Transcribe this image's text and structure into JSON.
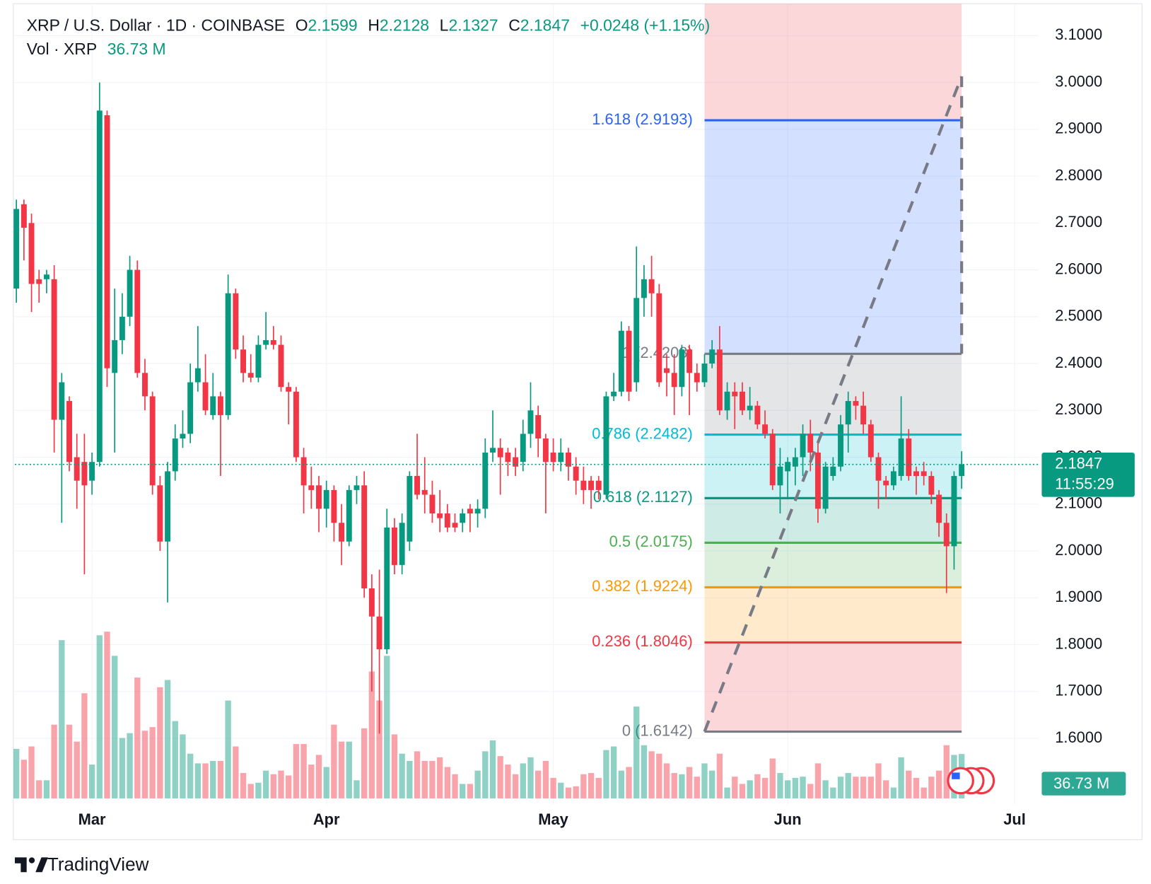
{
  "chart_data": {
    "type": "candlestick",
    "title": "XRP / U.S. Dollar · 1D · COINBASE",
    "ohlc_labels": {
      "open": "O",
      "high": "H",
      "low": "L",
      "close": "C"
    },
    "change_label": "+0.0248 (+1.15%)",
    "volume_title": "Vol · XRP",
    "volume_label": "36.73 M",
    "countdown": "11:55:29",
    "up_color": "#089981",
    "down_color": "#f23645",
    "open": [
      2.56,
      2.74,
      2.7,
      2.58,
      2.58,
      2.58,
      2.28,
      2.32,
      2.2,
      2.19,
      2.15,
      2.19,
      2.93,
      2.38,
      2.45,
      2.5,
      2.6,
      2.38,
      2.33,
      2.14,
      2.02,
      2.17,
      2.24,
      2.25,
      2.36,
      2.36,
      2.29,
      2.33,
      2.29,
      2.55,
      2.43,
      2.38,
      2.37,
      2.44,
      2.45,
      2.44,
      2.35,
      2.34,
      2.2,
      2.14,
      2.14,
      2.09,
      2.13,
      2.06,
      2.02,
      2.13,
      2.14,
      1.92,
      1.86,
      1.79,
      2.05,
      1.97,
      2.02,
      2.16,
      2.13,
      2.12,
      2.08,
      2.08,
      2.06,
      2.06,
      2.09,
      2.08,
      2.09,
      2.21,
      2.22,
      2.21,
      2.2,
      2.19,
      2.25,
      2.29,
      2.24,
      2.21,
      2.19,
      2.21,
      2.18,
      2.15,
      2.15,
      2.15,
      2.12,
      2.33,
      2.34,
      2.47,
      2.36,
      2.54,
      2.58,
      2.55,
      2.39,
      2.38,
      2.35,
      2.43,
      2.38,
      2.36,
      2.4,
      2.43,
      2.3,
      2.34,
      2.34,
      2.3,
      2.31,
      2.27,
      2.25,
      2.14,
      2.17,
      2.18,
      2.2,
      2.25,
      2.21,
      2.09,
      2.16,
      2.18,
      2.27,
      2.32,
      2.31,
      2.27,
      2.2,
      2.15,
      2.14,
      2.16,
      2.24,
      2.17,
      2.17,
      2.16,
      2.12,
      2.06,
      2.01,
      2.1599
    ],
    "high": [
      2.75,
      2.75,
      2.72,
      2.6,
      2.6,
      2.61,
      2.38,
      2.33,
      2.25,
      2.25,
      2.21,
      3.0,
      2.94,
      2.56,
      2.55,
      2.63,
      2.62,
      2.41,
      2.34,
      2.16,
      2.19,
      2.27,
      2.3,
      2.4,
      2.48,
      2.42,
      2.38,
      2.34,
      2.59,
      2.56,
      2.46,
      2.42,
      2.46,
      2.51,
      2.48,
      2.46,
      2.36,
      2.35,
      2.22,
      2.18,
      2.16,
      2.15,
      2.14,
      2.1,
      2.14,
      2.16,
      2.17,
      1.95,
      1.96,
      2.09,
      2.07,
      2.08,
      2.17,
      2.25,
      2.2,
      2.15,
      2.13,
      2.1,
      2.08,
      2.09,
      2.1,
      2.11,
      2.24,
      2.3,
      2.24,
      2.22,
      2.22,
      2.28,
      2.36,
      2.31,
      2.25,
      2.24,
      2.24,
      2.22,
      2.2,
      2.18,
      2.16,
      2.16,
      2.34,
      2.38,
      2.49,
      2.48,
      2.65,
      2.61,
      2.63,
      2.57,
      2.42,
      2.42,
      2.44,
      2.44,
      2.4,
      2.42,
      2.45,
      2.48,
      2.36,
      2.36,
      2.36,
      2.35,
      2.32,
      2.3,
      2.26,
      2.22,
      2.2,
      2.22,
      2.27,
      2.28,
      2.23,
      2.19,
      2.2,
      2.29,
      2.34,
      2.33,
      2.34,
      2.28,
      2.21,
      2.16,
      2.18,
      2.33,
      2.26,
      2.18,
      2.19,
      2.17,
      2.13,
      2.08,
      2.17,
      2.2128
    ],
    "low": [
      2.53,
      2.62,
      2.51,
      2.53,
      2.55,
      2.21,
      2.06,
      2.17,
      2.09,
      1.95,
      2.12,
      2.18,
      2.35,
      2.21,
      2.42,
      2.48,
      2.37,
      2.3,
      2.12,
      2.0,
      1.89,
      2.15,
      2.22,
      2.23,
      2.34,
      2.29,
      2.28,
      2.16,
      2.28,
      2.41,
      2.36,
      2.36,
      2.36,
      2.43,
      2.43,
      2.34,
      2.27,
      2.19,
      2.08,
      2.09,
      2.04,
      2.05,
      2.02,
      1.97,
      2.01,
      2.1,
      1.9,
      1.7,
      1.61,
      1.78,
      1.95,
      1.95,
      2.0,
      2.11,
      2.08,
      2.06,
      2.04,
      2.04,
      2.04,
      2.04,
      2.04,
      2.05,
      2.07,
      2.19,
      2.12,
      2.16,
      2.16,
      2.17,
      2.22,
      2.2,
      2.08,
      2.17,
      2.17,
      2.15,
      2.12,
      2.1,
      2.09,
      2.11,
      2.11,
      2.32,
      2.33,
      2.32,
      2.34,
      2.5,
      2.5,
      2.35,
      2.33,
      2.29,
      2.33,
      2.29,
      2.34,
      2.35,
      2.39,
      2.29,
      2.28,
      2.26,
      2.29,
      2.28,
      2.26,
      2.24,
      2.13,
      2.08,
      2.11,
      2.14,
      2.16,
      2.17,
      2.06,
      2.08,
      2.15,
      2.17,
      2.21,
      2.28,
      2.25,
      2.19,
      2.09,
      2.11,
      2.13,
      2.15,
      2.15,
      2.12,
      2.14,
      2.1,
      2.03,
      1.91,
      1.96,
      2.1327
    ],
    "close": [
      2.73,
      2.69,
      2.57,
      2.57,
      2.59,
      2.28,
      2.36,
      2.19,
      2.15,
      2.14,
      2.19,
      2.94,
      2.39,
      2.45,
      2.5,
      2.6,
      2.38,
      2.33,
      2.14,
      2.02,
      2.17,
      2.24,
      2.25,
      2.36,
      2.39,
      2.3,
      2.33,
      2.29,
      2.55,
      2.43,
      2.38,
      2.37,
      2.44,
      2.45,
      2.44,
      2.35,
      2.34,
      2.2,
      2.14,
      2.13,
      2.09,
      2.13,
      2.06,
      2.02,
      2.13,
      2.14,
      1.92,
      1.86,
      1.79,
      2.05,
      1.97,
      2.06,
      2.16,
      2.12,
      2.12,
      2.08,
      2.07,
      2.05,
      2.05,
      2.08,
      2.08,
      2.09,
      2.21,
      2.22,
      2.2,
      2.19,
      2.18,
      2.25,
      2.3,
      2.24,
      2.19,
      2.19,
      2.21,
      2.18,
      2.15,
      2.13,
      2.13,
      2.13,
      2.33,
      2.34,
      2.47,
      2.34,
      2.54,
      2.58,
      2.55,
      2.36,
      2.38,
      2.35,
      2.43,
      2.38,
      2.36,
      2.4,
      2.43,
      2.3,
      2.34,
      2.33,
      2.3,
      2.31,
      2.27,
      2.25,
      2.14,
      2.18,
      2.19,
      2.2,
      2.25,
      2.21,
      2.09,
      2.18,
      2.18,
      2.27,
      2.32,
      2.31,
      2.27,
      2.2,
      2.15,
      2.14,
      2.17,
      2.24,
      2.16,
      2.16,
      2.16,
      2.12,
      2.06,
      2.01,
      2.16,
      2.1847
    ],
    "volume": [
      41,
      32,
      43,
      15,
      15,
      61,
      131,
      61,
      47,
      87,
      28,
      135,
      138,
      118,
      50,
      54,
      100,
      56,
      59,
      92,
      98,
      64,
      53,
      37,
      29,
      29,
      31,
      31,
      81,
      43,
      21,
      12,
      13,
      23,
      20,
      23,
      19,
      45,
      45,
      28,
      36,
      26,
      61,
      47,
      47,
      15,
      58,
      105,
      81,
      118,
      53,
      37,
      31,
      39,
      31,
      31,
      34,
      26,
      20,
      12,
      12,
      23,
      39,
      48,
      35,
      28,
      20,
      29,
      34,
      23,
      31,
      17,
      13,
      9,
      10,
      20,
      21,
      17,
      40,
      43,
      23,
      26,
      76,
      44,
      39,
      37,
      29,
      21,
      20,
      26,
      18,
      29,
      23,
      37,
      9,
      18,
      12,
      15,
      20,
      17,
      33,
      21,
      15,
      17,
      18,
      12,
      29,
      15,
      9,
      18,
      21,
      18,
      18,
      18,
      29,
      15,
      9,
      34,
      23,
      17,
      9,
      18,
      23,
      44,
      36,
      36.73
    ],
    "xlim": [
      -0.2,
      135.2
    ],
    "xticks": [
      {
        "value": 10,
        "label": "Mar"
      },
      {
        "value": 41,
        "label": "Apr"
      },
      {
        "value": 71,
        "label": "May"
      },
      {
        "value": 102,
        "label": "Jun"
      },
      {
        "value": 132,
        "label": "Jul"
      }
    ],
    "ylim": [
      1.4591,
      3.1682
    ],
    "yticks": [
      {
        "value": 1.6,
        "label": "1.6000"
      },
      {
        "value": 1.7,
        "label": "1.7000"
      },
      {
        "value": 1.8,
        "label": "1.8000"
      },
      {
        "value": 1.9,
        "label": "1.9000"
      },
      {
        "value": 2.0,
        "label": "2.0000"
      },
      {
        "value": 2.1,
        "label": "2.1000"
      },
      {
        "value": 2.2,
        "label": "2.2000"
      },
      {
        "value": 2.3,
        "label": "2.3000"
      },
      {
        "value": 2.4,
        "label": "2.4000"
      },
      {
        "value": 2.5,
        "label": "2.5000"
      },
      {
        "value": 2.6,
        "label": "2.6000"
      },
      {
        "value": 2.7,
        "label": "2.7000"
      },
      {
        "value": 2.8,
        "label": "2.8000"
      },
      {
        "value": 2.9,
        "label": "2.9000"
      },
      {
        "value": 3.0,
        "label": "3.0000"
      },
      {
        "value": 3.1,
        "label": "3.1000"
      }
    ],
    "grid": true,
    "fib": {
      "x": [
        91,
        125
      ],
      "levels": [
        {
          "value": 2.9193,
          "label": "1.618 (2.9193)",
          "color": "#2962ff"
        },
        {
          "value": 2.4208,
          "label": "1 (2.4208)",
          "color": "#787b86"
        },
        {
          "value": 2.2482,
          "label": "0.786 (2.2482)",
          "color": "#00bcd4"
        },
        {
          "value": 2.1127,
          "label": "0.618 (2.1127)",
          "color": "#089981"
        },
        {
          "value": 2.0175,
          "label": "0.5 (2.0175)",
          "color": "#4caf50"
        },
        {
          "value": 1.9224,
          "label": "0.382 (1.9224)",
          "color": "#ff9800"
        },
        {
          "value": 1.8046,
          "label": "0.236 (1.8046)",
          "color": "#f23645"
        },
        {
          "value": 1.6142,
          "label": "0 (1.6142)",
          "color": "#787b86"
        }
      ]
    },
    "trend": {
      "x": [
        91,
        125,
        125
      ],
      "y": [
        1.6142,
        3.0126,
        2.4208
      ]
    }
  },
  "brand": "TradingView"
}
